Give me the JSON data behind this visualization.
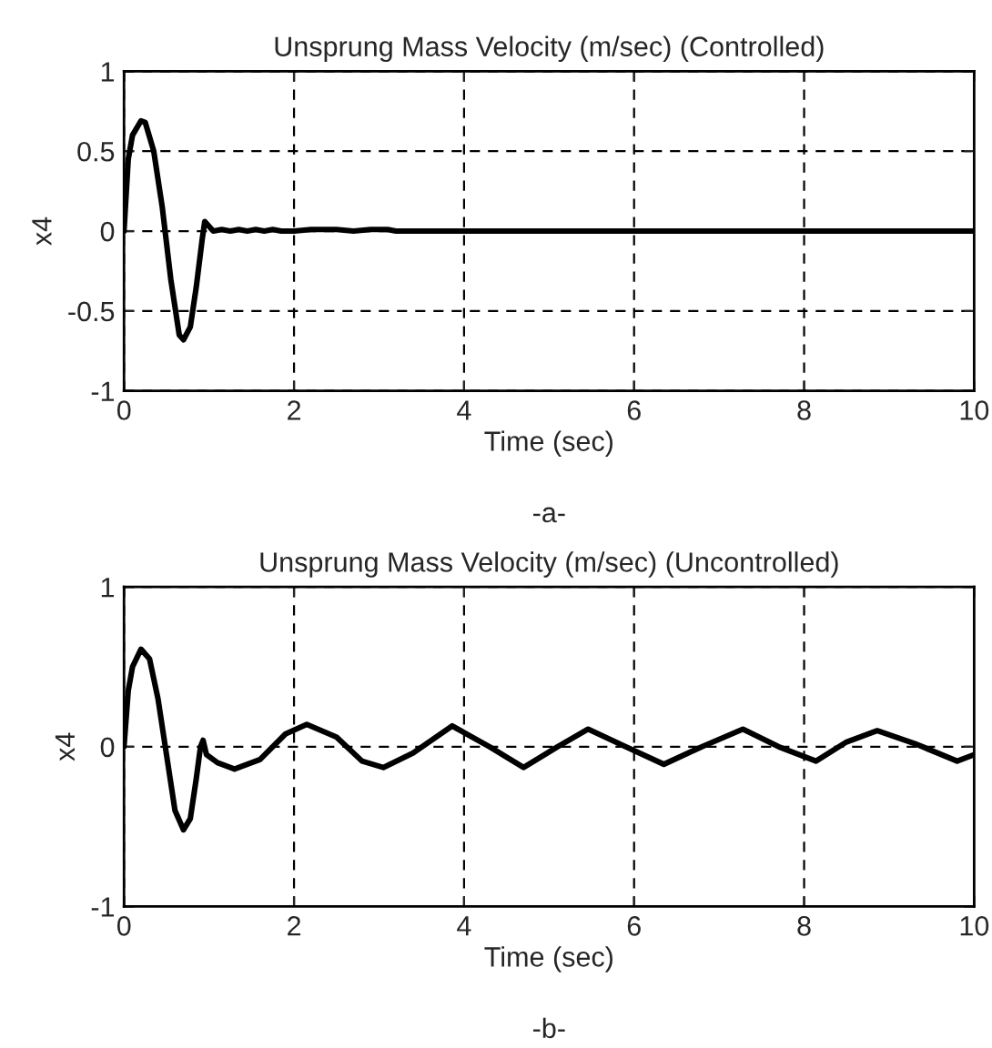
{
  "chart_data": [
    {
      "type": "line",
      "title": "Unsprung Mass Velocity (m/sec) (Controlled)",
      "xlabel": "Time (sec)",
      "ylabel": "x4",
      "annotations": [
        "-a-"
      ],
      "xlim": [
        0,
        10
      ],
      "ylim": [
        -1,
        1
      ],
      "xticks": [
        0,
        2,
        4,
        6,
        8,
        10
      ],
      "yticks": [
        -1,
        -0.5,
        0,
        0.5,
        1
      ],
      "grid": true,
      "legend": false,
      "series": [
        {
          "color": "#000000",
          "x": [
            0,
            0.05,
            0.1,
            0.2,
            0.25,
            0.35,
            0.45,
            0.55,
            0.65,
            0.7,
            0.78,
            0.85,
            0.92,
            0.95,
            1.0,
            1.05,
            1.15,
            1.25,
            1.35,
            1.45,
            1.55,
            1.65,
            1.75,
            1.85,
            2.0,
            2.2,
            2.5,
            2.7,
            2.9,
            3.1,
            3.2,
            10
          ],
          "values": [
            0,
            0.45,
            0.6,
            0.69,
            0.68,
            0.5,
            0.15,
            -0.3,
            -0.65,
            -0.68,
            -0.6,
            -0.35,
            -0.05,
            0.06,
            0.03,
            0,
            0.01,
            0,
            0.01,
            0,
            0.01,
            0,
            0.01,
            0,
            0,
            0.01,
            0.01,
            0,
            0.01,
            0.01,
            0,
            0
          ]
        }
      ]
    },
    {
      "type": "line",
      "title": "Unsprung Mass Velocity (m/sec) (Uncontrolled)",
      "xlabel": "Time (sec)",
      "ylabel": "x4",
      "annotations": [
        "-b-"
      ],
      "xlim": [
        0,
        10
      ],
      "ylim": [
        -1,
        1
      ],
      "xticks": [
        0,
        2,
        4,
        6,
        8,
        10
      ],
      "yticks": [
        -1,
        0,
        1
      ],
      "grid": true,
      "legend": false,
      "series": [
        {
          "color": "#000000",
          "x": [
            0,
            0.05,
            0.1,
            0.2,
            0.3,
            0.4,
            0.5,
            0.6,
            0.7,
            0.78,
            0.85,
            0.9,
            0.93,
            0.97,
            1.1,
            1.3,
            1.6,
            1.9,
            2.15,
            2.5,
            2.8,
            3.05,
            3.4,
            3.86,
            4.3,
            4.7,
            5.1,
            5.46,
            5.9,
            6.35,
            6.8,
            7.28,
            7.7,
            8.14,
            8.5,
            8.86,
            9.3,
            9.8,
            10
          ],
          "values": [
            0,
            0.35,
            0.5,
            0.61,
            0.55,
            0.3,
            -0.05,
            -0.4,
            -0.52,
            -0.45,
            -0.2,
            0.0,
            0.04,
            -0.05,
            -0.1,
            -0.14,
            -0.08,
            0.08,
            0.14,
            0.06,
            -0.09,
            -0.13,
            -0.04,
            0.13,
            0.0,
            -0.13,
            0.0,
            0.11,
            0.0,
            -0.11,
            0.0,
            0.11,
            0.0,
            -0.09,
            0.03,
            0.1,
            0.02,
            -0.09,
            -0.05
          ]
        }
      ]
    }
  ]
}
